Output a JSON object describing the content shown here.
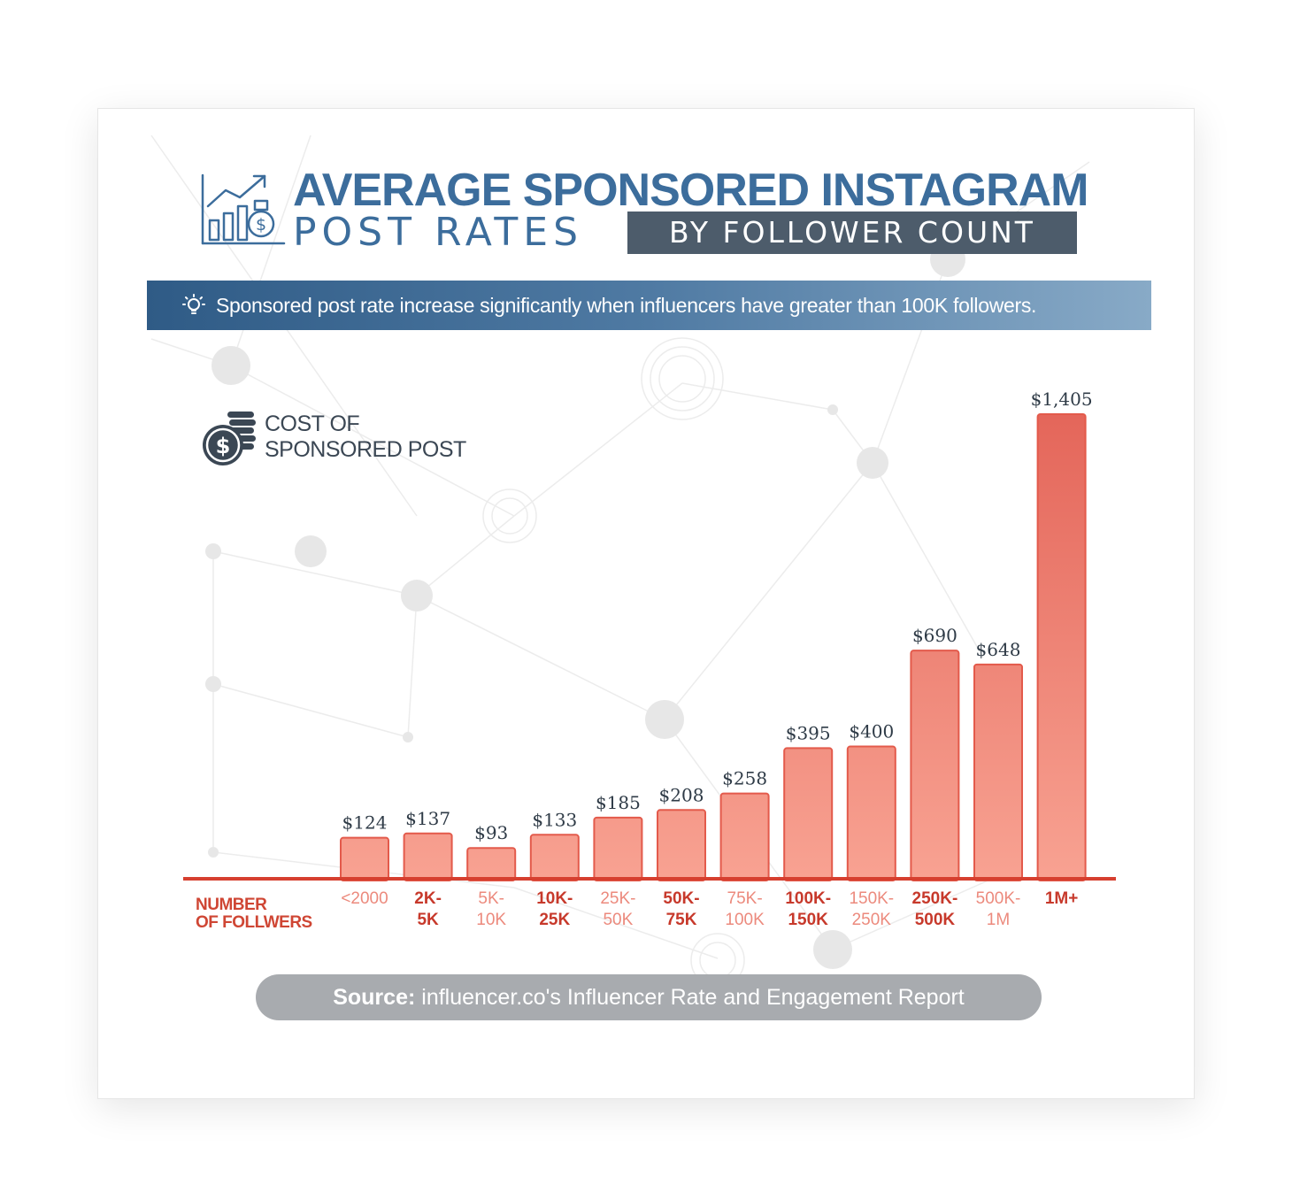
{
  "title": {
    "line1": "AVERAGE SPONSORED INSTAGRAM",
    "line2": "POST RATES",
    "badge": "BY FOLLOWER COUNT"
  },
  "banner": {
    "icon": "lightbulb-icon",
    "text": "Sponsored post rate increase significantly when influencers have greater than 100K followers."
  },
  "legend": {
    "icon": "dollar-coins-icon",
    "line1": "COST OF",
    "line2": "SPONSORED POST"
  },
  "source": {
    "label": "Source:",
    "text": "influencer.co's Influencer Rate and Engagement Report"
  },
  "colors": {
    "title_blue": "#3c6d9c",
    "badge_gray": "#4d5c6b",
    "bar_light": "#f6a090",
    "bar_dark": "#e5695a",
    "axis_red": "#cf4634",
    "label_dark_red": "#c7392b",
    "label_light_red": "#ec8a7d"
  },
  "chart_data": {
    "type": "bar",
    "title": "AVERAGE SPONSORED INSTAGRAM POST RATES BY FOLLOWER COUNT",
    "ylabel": "COST OF SPONSORED POST",
    "xlabel": "NUMBER OF FOLLWERS",
    "xlabel_lines": [
      "NUMBER",
      "OF FOLLWERS"
    ],
    "ylim": [
      0,
      1405
    ],
    "grid": false,
    "categories": [
      "<2000",
      "2K-5K",
      "5K-10K",
      "10K-25K",
      "25K-50K",
      "50K-75K",
      "75K-100K",
      "100K-150K",
      "150K-250K",
      "250K-500K",
      "500K-1M",
      "1M+"
    ],
    "category_lines": [
      [
        "<2000"
      ],
      [
        "2K-",
        "5K"
      ],
      [
        "5K-",
        "10K"
      ],
      [
        "10K-",
        "25K"
      ],
      [
        "25K-",
        "50K"
      ],
      [
        "50K-",
        "75K"
      ],
      [
        "75K-",
        "100K"
      ],
      [
        "100K-",
        "150K"
      ],
      [
        "150K-",
        "250K"
      ],
      [
        "250K-",
        "500K"
      ],
      [
        "500K-",
        "1M"
      ],
      [
        "1M+"
      ]
    ],
    "category_tone": [
      "light",
      "dark",
      "light",
      "dark",
      "light",
      "dark",
      "light",
      "dark",
      "light",
      "dark",
      "light",
      "dark"
    ],
    "values": [
      124,
      137,
      93,
      133,
      185,
      208,
      258,
      395,
      400,
      690,
      648,
      1405
    ],
    "value_labels": [
      "$124",
      "$137",
      "$93",
      "$133",
      "$185",
      "$208",
      "$258",
      "$395",
      "$400",
      "$690",
      "$648",
      "$1,405"
    ]
  }
}
